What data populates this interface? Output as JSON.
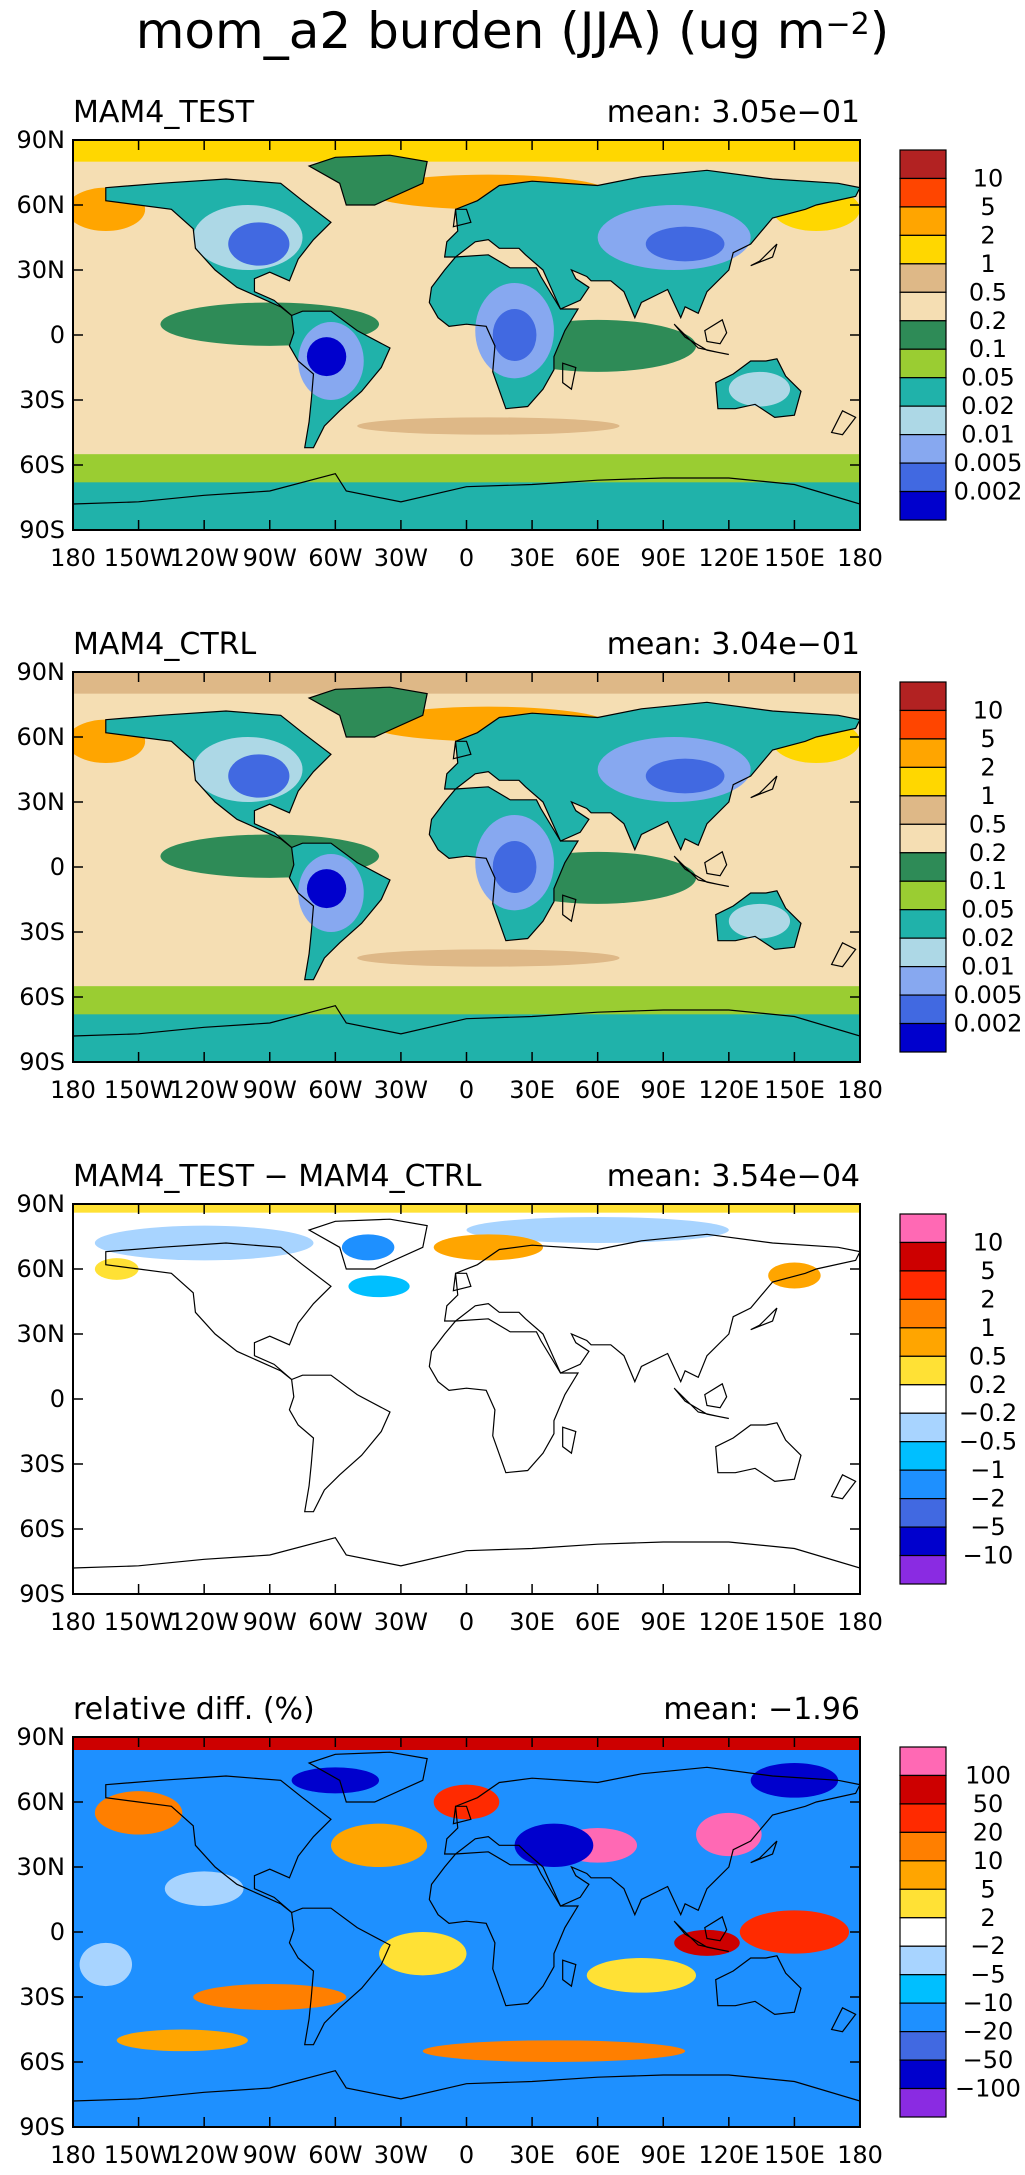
{
  "figure": {
    "title_main": "mom_a2 burden (JJA) (ug m",
    "title_unit_exp": "−2",
    "title_close": ")"
  },
  "axes": {
    "lat_ticks": [
      "90N",
      "60N",
      "30N",
      "0",
      "30S",
      "60S",
      "90S"
    ],
    "lon_ticks": [
      "180",
      "150W",
      "120W",
      "90W",
      "60W",
      "30W",
      "0",
      "30E",
      "60E",
      "90E",
      "120E",
      "150E",
      "180"
    ]
  },
  "panels": [
    {
      "left_title": "MAM4_TEST",
      "right_title": "mean: 3.05e−01",
      "colorbar": {
        "labels": [
          "10",
          "5",
          "2",
          "1",
          "0.5",
          "0.2",
          "0.1",
          "0.05",
          "0.02",
          "0.01",
          "0.005",
          "0.002"
        ],
        "colors": [
          "#B22222",
          "#FF4500",
          "#FFA500",
          "#FFD700",
          "#DEB887",
          "#F5DEB3",
          "#2E8B57",
          "#9ACD32",
          "#20B2AA",
          "#ADD8E6",
          "#87A8F0",
          "#4169E1",
          "#0000CD"
        ]
      }
    },
    {
      "left_title": "MAM4_CTRL",
      "right_title": "mean: 3.04e−01",
      "colorbar": {
        "labels": [
          "10",
          "5",
          "2",
          "1",
          "0.5",
          "0.2",
          "0.1",
          "0.05",
          "0.02",
          "0.01",
          "0.005",
          "0.002"
        ],
        "colors": [
          "#B22222",
          "#FF4500",
          "#FFA500",
          "#FFD700",
          "#DEB887",
          "#F5DEB3",
          "#2E8B57",
          "#9ACD32",
          "#20B2AA",
          "#ADD8E6",
          "#87A8F0",
          "#4169E1",
          "#0000CD"
        ]
      }
    },
    {
      "left_title": "MAM4_TEST − MAM4_CTRL",
      "right_title": "mean: 3.54e−04",
      "colorbar": {
        "labels": [
          "10",
          "5",
          "2",
          "1",
          "0.5",
          "0.2",
          "−0.2",
          "−0.5",
          "−1",
          "−2",
          "−5",
          "−10"
        ],
        "colors": [
          "#FF69B4",
          "#CD0000",
          "#FF2A00",
          "#FF7F00",
          "#FFA500",
          "#FFE135",
          "#FFFFFF",
          "#A8D4FF",
          "#00BFFF",
          "#1E90FF",
          "#4169E1",
          "#0000CD",
          "#8A2BE2"
        ]
      }
    },
    {
      "left_title": "relative diff. (%)",
      "right_title": "mean: −1.96",
      "colorbar": {
        "labels": [
          "100",
          "50",
          "20",
          "10",
          "5",
          "2",
          "−2",
          "−5",
          "−10",
          "−20",
          "−50",
          "−100"
        ],
        "colors": [
          "#FF69B4",
          "#CD0000",
          "#FF2A00",
          "#FF7F00",
          "#FFA500",
          "#FFE135",
          "#FFFFFF",
          "#A8D4FF",
          "#00BFFF",
          "#1E90FF",
          "#4169E1",
          "#0000CD",
          "#8A2BE2"
        ]
      }
    }
  ]
}
